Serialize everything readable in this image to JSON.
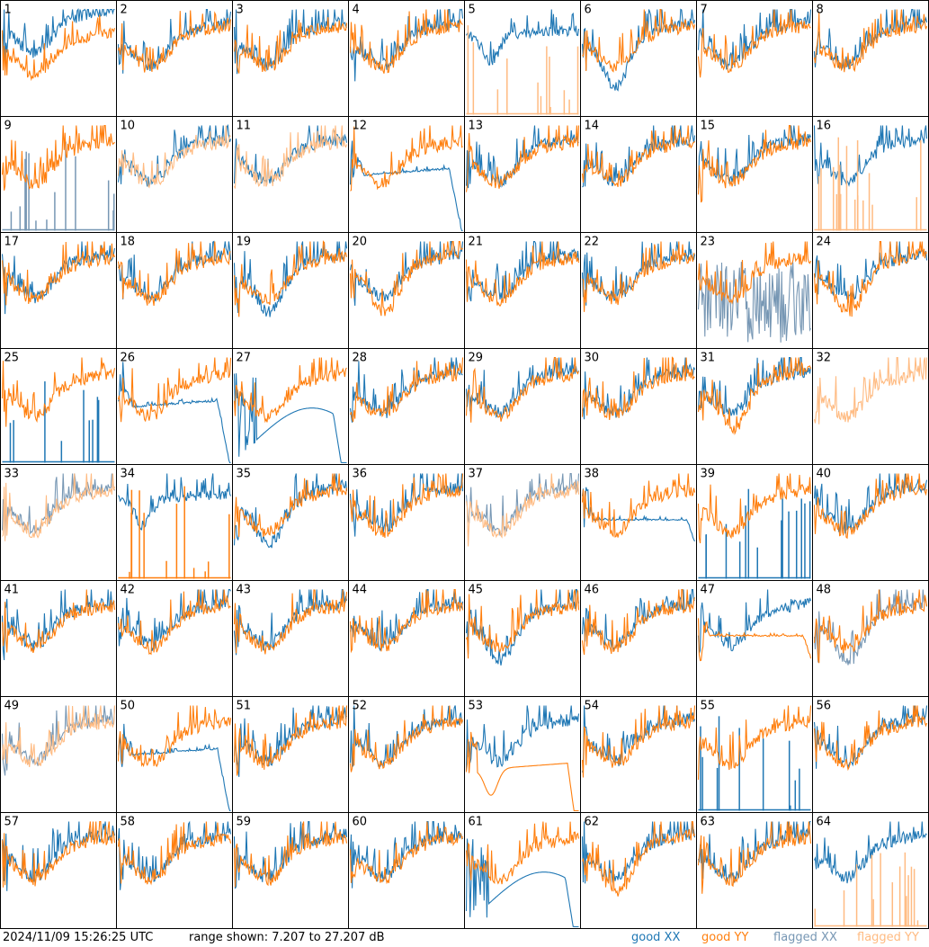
{
  "footer": {
    "timestamp": "2024/11/09 15:26:25 UTC",
    "range_text": "range shown: 7.207 to 27.207 dB"
  },
  "legend": {
    "good_xx": "good XX",
    "good_yy": "good YY",
    "flagged_xx": "flagged XX",
    "flagged_yy": "flagged YY"
  },
  "colors": {
    "good_xx": "#1f77b4",
    "good_yy": "#ff7f0e",
    "flagged_xx": "#7797b4",
    "flagged_yy": "#ffbb82",
    "border": "#000000"
  },
  "chart_data": {
    "type": "line",
    "grid": "8x8 small multiples, one panel per antenna",
    "y_range_db": [
      7.207,
      27.207
    ],
    "panels": [
      {
        "id": "1",
        "xx": "good",
        "yy": "good",
        "xx_shape": "high",
        "yy_shape": "sag"
      },
      {
        "id": "2",
        "xx": "good",
        "yy": "good"
      },
      {
        "id": "3",
        "xx": "good",
        "yy": "good"
      },
      {
        "id": "4",
        "xx": "good",
        "yy": "good"
      },
      {
        "id": "5",
        "xx": "good",
        "yy": "flagged",
        "xx_shape": "dip",
        "yy_shape": "spikes"
      },
      {
        "id": "6",
        "xx": "good",
        "yy": "good",
        "xx_shape": "deepdip"
      },
      {
        "id": "7",
        "xx": "good",
        "yy": "good"
      },
      {
        "id": "8",
        "xx": "good",
        "yy": "good"
      },
      {
        "id": "9",
        "xx": "flagged",
        "yy": "good",
        "xx_shape": "spikes"
      },
      {
        "id": "10",
        "xx": "good",
        "yy": "flagged"
      },
      {
        "id": "11",
        "xx": "good",
        "yy": "flagged"
      },
      {
        "id": "12",
        "xx": "good",
        "yy": "good",
        "xx_shape": "falloff"
      },
      {
        "id": "13",
        "xx": "good",
        "yy": "good"
      },
      {
        "id": "14",
        "xx": "good",
        "yy": "good"
      },
      {
        "id": "15",
        "xx": "good",
        "yy": "good"
      },
      {
        "id": "16",
        "xx": "good",
        "yy": "flagged",
        "yy_shape": "spikes"
      },
      {
        "id": "17",
        "xx": "good",
        "yy": "good"
      },
      {
        "id": "18",
        "xx": "good",
        "yy": "good"
      },
      {
        "id": "19",
        "xx": "good",
        "yy": "good",
        "xx_shape": "lowdip"
      },
      {
        "id": "20",
        "xx": "good",
        "yy": "good",
        "yy_shape": "lowdip"
      },
      {
        "id": "21",
        "xx": "good",
        "yy": "good"
      },
      {
        "id": "22",
        "xx": "good",
        "yy": "good"
      },
      {
        "id": "23",
        "xx": "flagged",
        "yy": "good",
        "xx_shape": "noise"
      },
      {
        "id": "24",
        "xx": "good",
        "yy": "good",
        "yy_shape": "lowdip"
      },
      {
        "id": "25",
        "xx": "good",
        "yy": "good",
        "xx_shape": "spikes"
      },
      {
        "id": "26",
        "xx": "good",
        "yy": "good",
        "xx_shape": "falloff"
      },
      {
        "id": "27",
        "xx": "good",
        "yy": "good",
        "xx_shape": "wildsmooth"
      },
      {
        "id": "28",
        "xx": "good",
        "yy": "good"
      },
      {
        "id": "29",
        "xx": "good",
        "yy": "good"
      },
      {
        "id": "30",
        "xx": "good",
        "yy": "good"
      },
      {
        "id": "31",
        "xx": "good",
        "yy": "good",
        "yy_shape": "lowdip"
      },
      {
        "id": "32",
        "xx": "good",
        "yy": "flagged",
        "xx_shape": "hidden"
      },
      {
        "id": "33",
        "xx": "flagged",
        "yy": "flagged"
      },
      {
        "id": "34",
        "xx": "good",
        "yy": "good",
        "xx_shape": "dip",
        "yy_shape": "spikes"
      },
      {
        "id": "35",
        "xx": "good",
        "yy": "good",
        "xx_shape": "lowdip"
      },
      {
        "id": "36",
        "xx": "good",
        "yy": "good"
      },
      {
        "id": "37",
        "xx": "flagged",
        "yy": "flagged"
      },
      {
        "id": "38",
        "xx": "good",
        "yy": "good",
        "xx_shape": "flat"
      },
      {
        "id": "39",
        "xx": "good",
        "yy": "good",
        "xx_shape": "spikes"
      },
      {
        "id": "40",
        "xx": "good",
        "yy": "good"
      },
      {
        "id": "41",
        "xx": "good",
        "yy": "good"
      },
      {
        "id": "42",
        "xx": "good",
        "yy": "good"
      },
      {
        "id": "43",
        "xx": "good",
        "yy": "good"
      },
      {
        "id": "44",
        "xx": "good",
        "yy": "good"
      },
      {
        "id": "45",
        "xx": "good",
        "yy": "good",
        "xx_shape": "lowdip"
      },
      {
        "id": "46",
        "xx": "good",
        "yy": "good"
      },
      {
        "id": "47",
        "xx": "good",
        "yy": "good",
        "yy_shape": "flat"
      },
      {
        "id": "48",
        "xx": "flagged",
        "yy": "good",
        "xx_shape": "lowdip"
      },
      {
        "id": "49",
        "xx": "flagged",
        "yy": "flagged"
      },
      {
        "id": "50",
        "xx": "good",
        "yy": "good",
        "xx_shape": "falloff"
      },
      {
        "id": "51",
        "xx": "good",
        "yy": "good"
      },
      {
        "id": "52",
        "xx": "good",
        "yy": "good"
      },
      {
        "id": "53",
        "xx": "good",
        "yy": "good",
        "yy_shape": "smoothfall"
      },
      {
        "id": "54",
        "xx": "good",
        "yy": "good"
      },
      {
        "id": "55",
        "xx": "good",
        "yy": "good",
        "xx_shape": "spikes"
      },
      {
        "id": "56",
        "xx": "good",
        "yy": "good"
      },
      {
        "id": "57",
        "xx": "good",
        "yy": "good"
      },
      {
        "id": "58",
        "xx": "good",
        "yy": "good"
      },
      {
        "id": "59",
        "xx": "good",
        "yy": "good"
      },
      {
        "id": "60",
        "xx": "good",
        "yy": "good"
      },
      {
        "id": "61",
        "xx": "good",
        "yy": "good",
        "xx_shape": "wildsmooth"
      },
      {
        "id": "62",
        "xx": "good",
        "yy": "good",
        "yy_shape": "lowdip"
      },
      {
        "id": "63",
        "xx": "good",
        "yy": "good"
      },
      {
        "id": "64",
        "xx": "good",
        "yy": "flagged",
        "yy_shape": "spikes"
      }
    ]
  }
}
